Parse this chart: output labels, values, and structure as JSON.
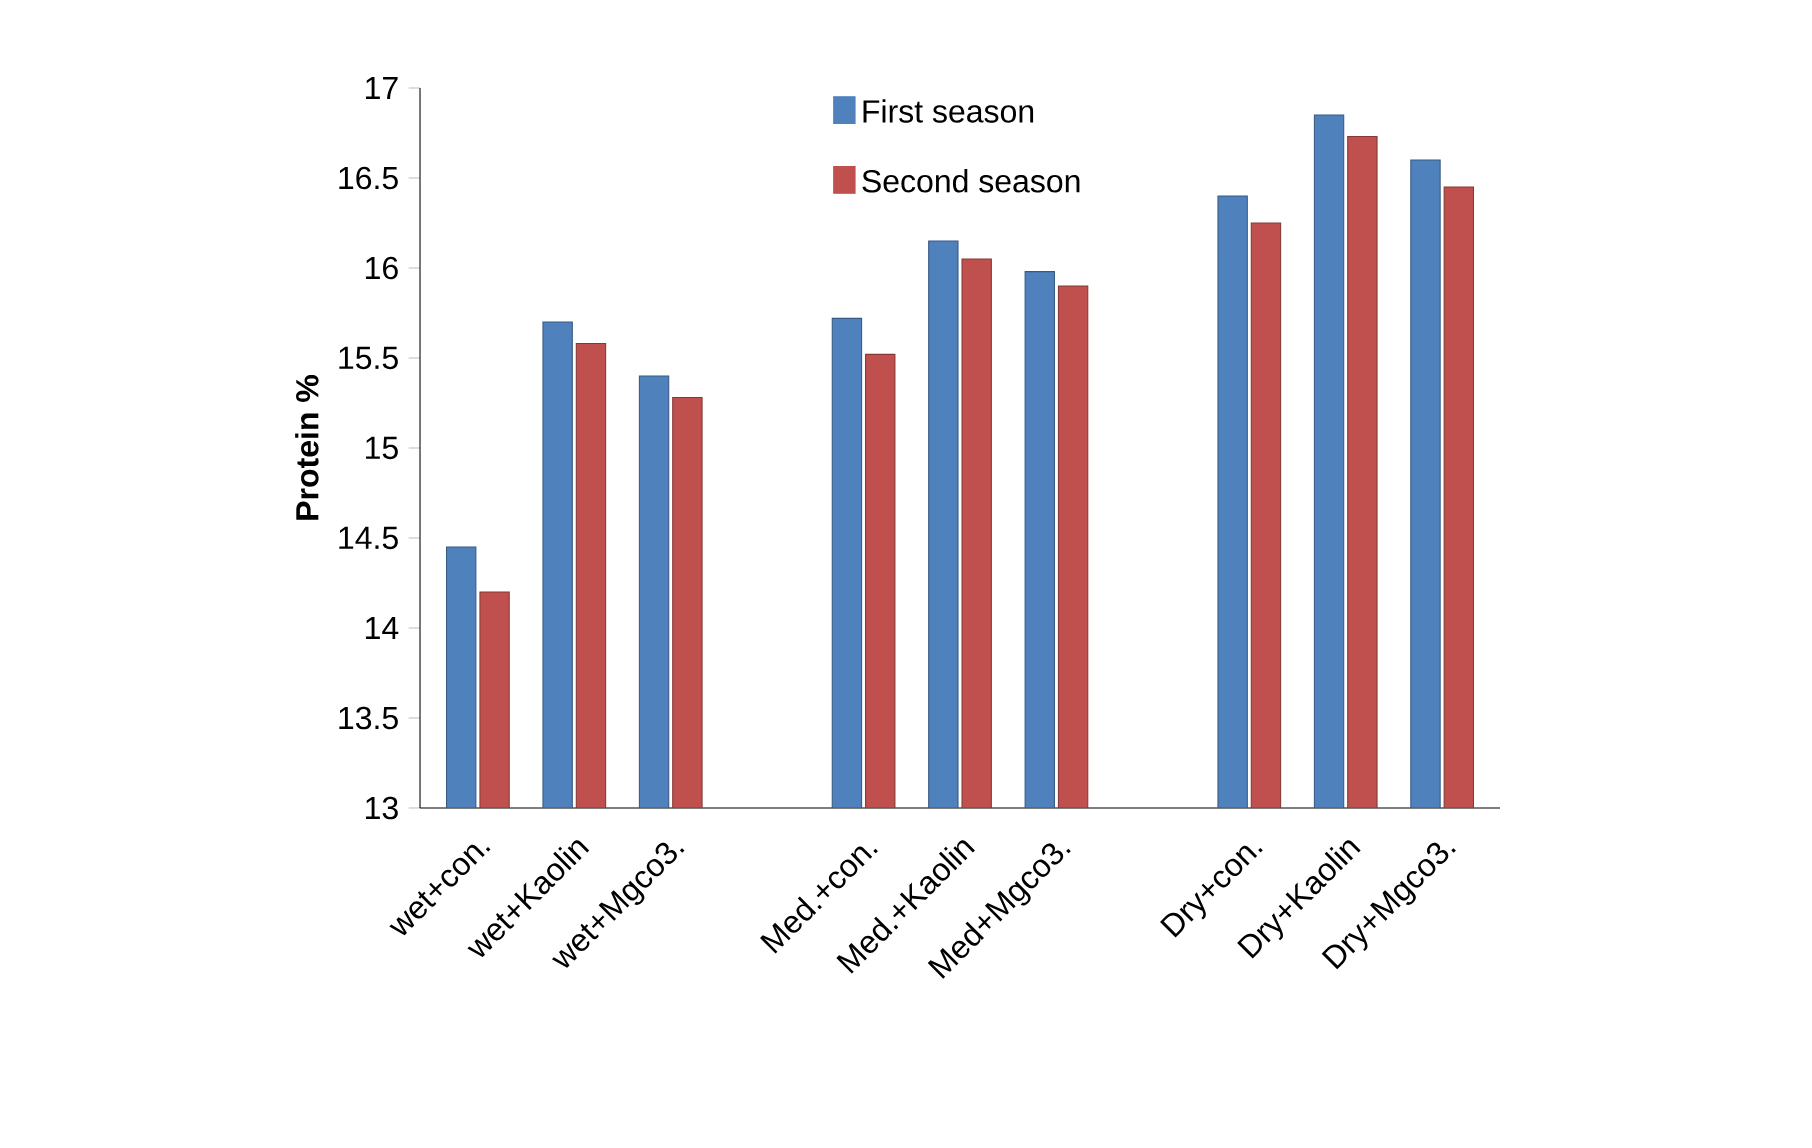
{
  "chart_data": {
    "type": "bar",
    "ylabel": "**Protein %**",
    "categories": [
      "wet+con.",
      "wet+Kaolin",
      "wet+Mgco3.",
      null,
      "Med.+con.",
      "Med.+Kaolin",
      "Med+Mgco3.",
      null,
      "Dry+con.",
      "Dry+Kaolin",
      "Dry+Mgco3."
    ],
    "series": [
      {
        "name": "First season",
        "color": "#4f81bd",
        "values": [
          14.45,
          15.7,
          15.4,
          null,
          15.72,
          16.15,
          15.98,
          null,
          16.4,
          16.85,
          16.6
        ]
      },
      {
        "name": "Second season",
        "color": "#c0504d",
        "values": [
          14.2,
          15.58,
          15.28,
          null,
          15.52,
          16.05,
          15.9,
          null,
          16.25,
          16.73,
          16.45
        ]
      }
    ],
    "ylim": [
      13,
      17
    ],
    "yticks": [
      13,
      13.5,
      14,
      14.5,
      15,
      15.5,
      16,
      16.5,
      17
    ],
    "legend": "top"
  }
}
